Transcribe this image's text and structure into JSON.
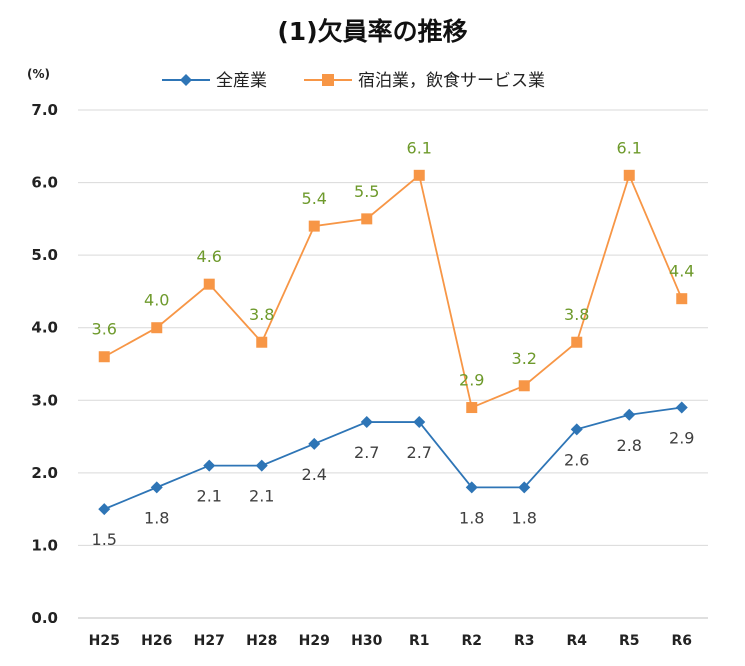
{
  "chart_data": {
    "type": "line",
    "title": "(1)欠員率の推移",
    "ylabel": "(%)",
    "xlabel": "",
    "ylim": [
      0,
      7
    ],
    "yticks": [
      "0.0",
      "1.0",
      "2.0",
      "3.0",
      "4.0",
      "5.0",
      "6.0",
      "7.0"
    ],
    "categories": [
      "H25",
      "H26",
      "H27",
      "H28",
      "H29",
      "H30",
      "R1",
      "R2",
      "R3",
      "R4",
      "R5",
      "R6"
    ],
    "series": [
      {
        "name": "全産業",
        "color": "#2e75b6",
        "marker": "diamond",
        "values": [
          1.5,
          1.8,
          2.1,
          2.1,
          2.4,
          2.7,
          2.7,
          1.8,
          1.8,
          2.6,
          2.8,
          2.9
        ],
        "labels": [
          "1.5",
          "1.8",
          "2.1",
          "2.1",
          "2.4",
          "2.7",
          "2.7",
          "1.8",
          "1.8",
          "2.6",
          "2.8",
          "2.9"
        ]
      },
      {
        "name": "宿泊業，飲食サービス業",
        "color": "#f79646",
        "marker": "square",
        "label_color": "#6e9a2c",
        "values": [
          3.6,
          4.0,
          4.6,
          3.8,
          5.4,
          5.5,
          6.1,
          2.9,
          3.2,
          3.8,
          6.1,
          4.4
        ],
        "labels": [
          "3.6",
          "4.0",
          "4.6",
          "3.8",
          "5.4",
          "5.5",
          "6.1",
          "2.9",
          "3.2",
          "3.8",
          "6.1",
          "4.4"
        ]
      }
    ],
    "grid": true,
    "legend_position": "top"
  }
}
